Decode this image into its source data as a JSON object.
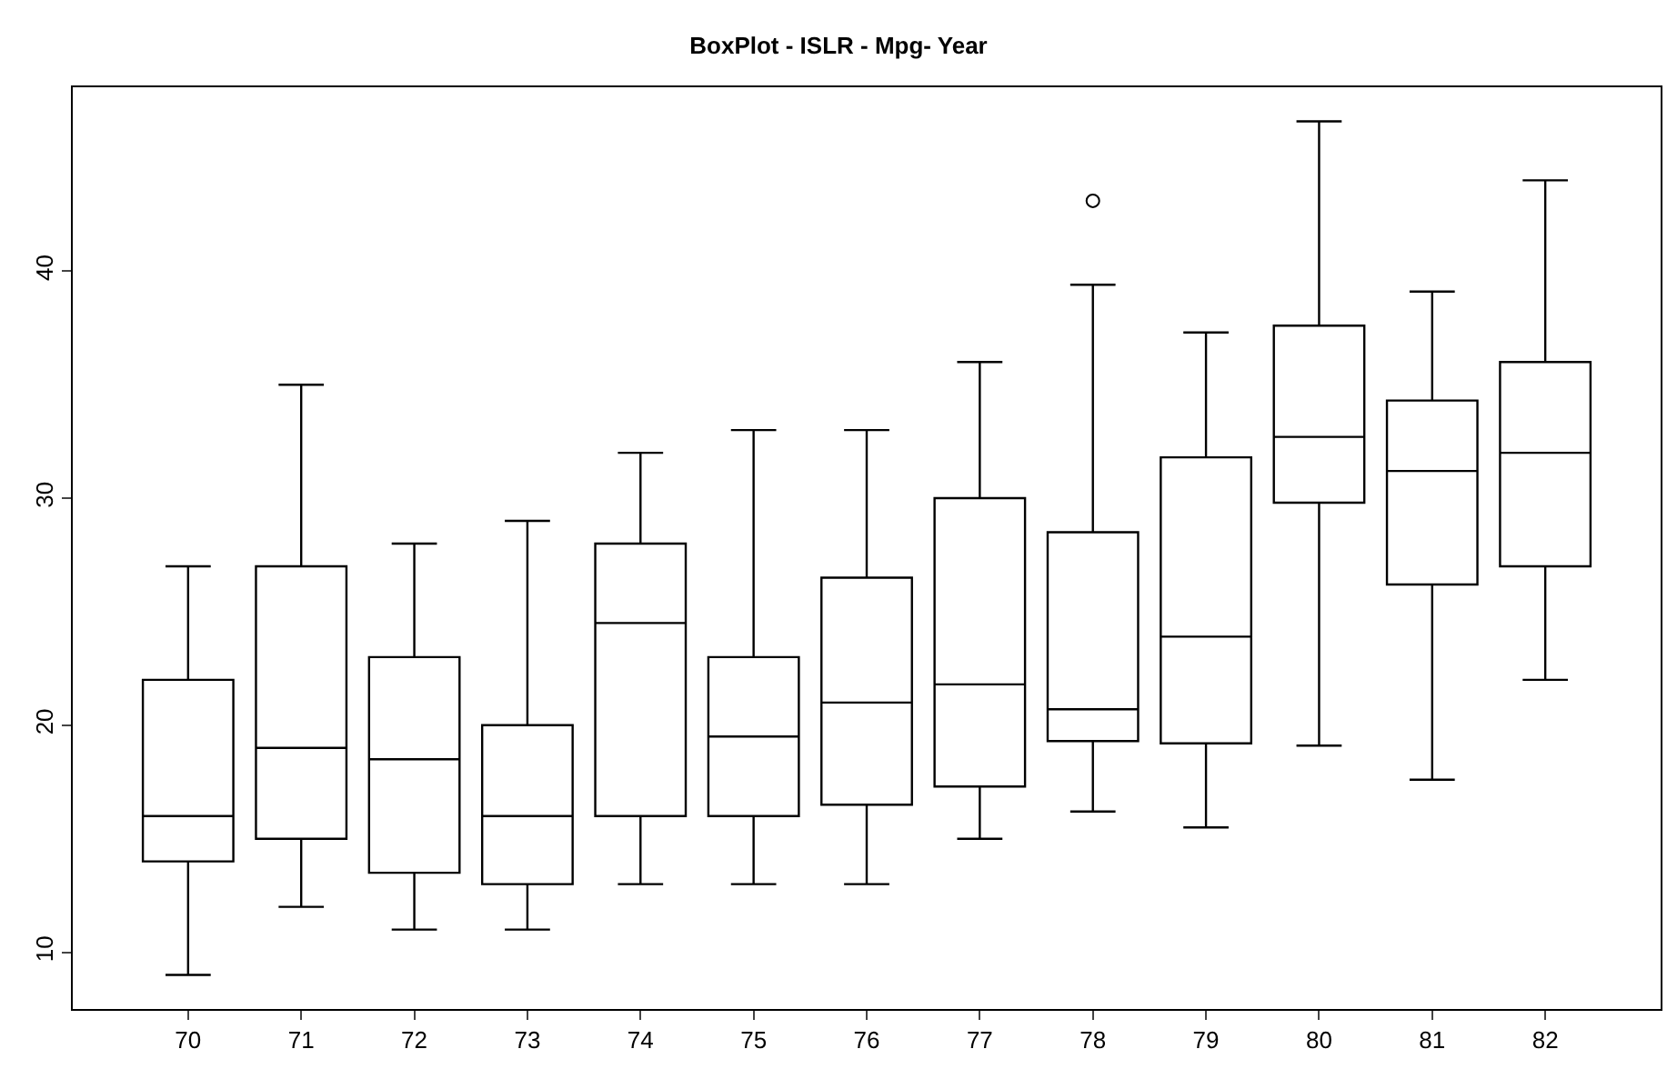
{
  "chart_data": {
    "type": "box",
    "title": "BoxPlot - ISLR - Mpg- Year",
    "categories": [
      "70",
      "71",
      "72",
      "73",
      "74",
      "75",
      "76",
      "77",
      "78",
      "79",
      "80",
      "81",
      "82"
    ],
    "boxes": [
      {
        "low": 9,
        "q1": 14,
        "median": 16,
        "q3": 22,
        "high": 27
      },
      {
        "low": 12,
        "q1": 15,
        "median": 19,
        "q3": 27,
        "high": 35
      },
      {
        "low": 11,
        "q1": 13.5,
        "median": 18.5,
        "q3": 23,
        "high": 28
      },
      {
        "low": 11,
        "q1": 13,
        "median": 16,
        "q3": 20,
        "high": 29
      },
      {
        "low": 13,
        "q1": 16,
        "median": 24.5,
        "q3": 28,
        "high": 32
      },
      {
        "low": 13,
        "q1": 16,
        "median": 19.5,
        "q3": 23,
        "high": 33
      },
      {
        "low": 13,
        "q1": 16.5,
        "median": 21,
        "q3": 26.5,
        "high": 33
      },
      {
        "low": 15,
        "q1": 17.3,
        "median": 21.8,
        "q3": 30,
        "high": 36
      },
      {
        "low": 16.2,
        "q1": 19.3,
        "median": 20.7,
        "q3": 28.5,
        "high": 39.4,
        "outliers": [
          43.1
        ]
      },
      {
        "low": 15.5,
        "q1": 19.2,
        "median": 23.9,
        "q3": 31.8,
        "high": 37.3
      },
      {
        "low": 19.1,
        "q1": 29.8,
        "median": 32.7,
        "q3": 37.6,
        "high": 46.6
      },
      {
        "low": 17.6,
        "q1": 26.2,
        "median": 31.2,
        "q3": 34.3,
        "high": 39.1
      },
      {
        "low": 22,
        "q1": 27,
        "median": 32,
        "q3": 36,
        "high": 44
      }
    ],
    "color": "#000000",
    "ylim": [
      7.5,
      48.1
    ],
    "yticks": [
      10,
      20,
      30,
      40
    ]
  }
}
